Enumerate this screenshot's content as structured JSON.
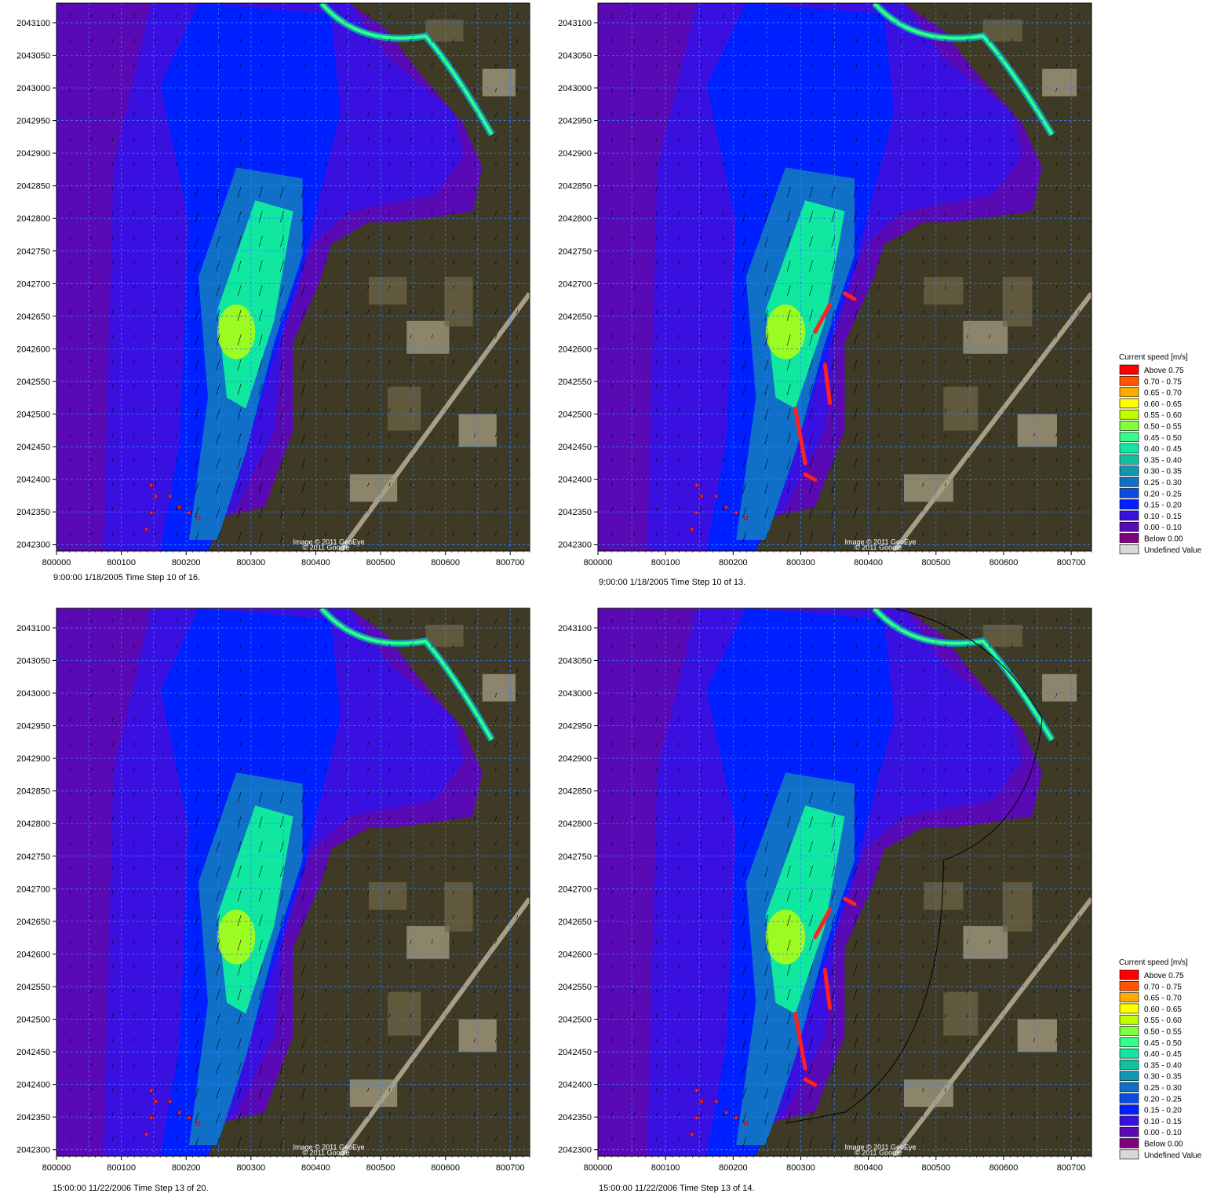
{
  "colors": {
    "above_075": "#ff0000",
    "c070_075": "#ff5500",
    "c065_070": "#ffaa00",
    "c060_065": "#ffff00",
    "c055_060": "#bfff00",
    "c050_055": "#80ff40",
    "c045_050": "#33ff88",
    "c040_045": "#10e8a0",
    "c035_040": "#10c0a0",
    "c030_035": "#1098b0",
    "c025_030": "#1070c8",
    "c020_025": "#0a4ce0",
    "c015_020": "#0020ff",
    "c010_015": "#3a10e0",
    "c000_010": "#5a0ab4",
    "below_000": "#800080",
    "undefined": "#d8d8d8",
    "grid": "#2a7fff",
    "land_dark": "#3f3a25",
    "land_mid": "#6e6446",
    "land_light": "#a89e84",
    "structure": "#ff2020"
  },
  "chart_data": [
    {
      "type": "heatmap",
      "xlim": [
        800000,
        800730
      ],
      "ylim": [
        2042290,
        2043130
      ],
      "x_ticks": [
        "800000",
        "800100",
        "800200",
        "800300",
        "800400",
        "800500",
        "800600",
        "800700"
      ],
      "y_ticks": [
        "2042300",
        "2042350",
        "2042400",
        "2042450",
        "2042500",
        "2042550",
        "2042600",
        "2042650",
        "2042700",
        "2042750",
        "2042800",
        "2042850",
        "2042900",
        "2042950",
        "2043000",
        "2043050",
        "2043100"
      ],
      "caption": "9:00:00 1/18/2005  Time Step 10 of 16.",
      "image_credit_1": "Image © 2011 GeoEye",
      "image_credit_2": "© 2011 Google",
      "structures": false,
      "outline": false
    },
    {
      "type": "heatmap",
      "xlim": [
        800000,
        800730
      ],
      "ylim": [
        2042290,
        2043130
      ],
      "x_ticks": [
        "800000",
        "800100",
        "800200",
        "800300",
        "800400",
        "800500",
        "800600",
        "800700"
      ],
      "y_ticks": [
        "2042300",
        "2042350",
        "2042400",
        "2042450",
        "2042500",
        "2042550",
        "2042600",
        "2042650",
        "2042700",
        "2042750",
        "2042800",
        "2042850",
        "2042900",
        "2042950",
        "2043000",
        "2043050",
        "2043100"
      ],
      "caption": "9:00:00 1/18/2005  Time Step 10 of 13.",
      "image_credit_1": "Image © 2011 GeoEye",
      "image_credit_2": "© 2011 Google",
      "structures": true,
      "outline": false
    },
    {
      "type": "heatmap",
      "xlim": [
        800000,
        800730
      ],
      "ylim": [
        2042290,
        2043130
      ],
      "x_ticks": [
        "800000",
        "800100",
        "800200",
        "800300",
        "800400",
        "800500",
        "800600",
        "800700"
      ],
      "y_ticks": [
        "2042300",
        "2042350",
        "2042400",
        "2042450",
        "2042500",
        "2042550",
        "2042600",
        "2042650",
        "2042700",
        "2042750",
        "2042800",
        "2042850",
        "2042900",
        "2042950",
        "2043000",
        "2043050",
        "2043100"
      ],
      "caption": "15:00:00 11/22/2006  Time Step 13 of 20.",
      "image_credit_1": "Image © 2011 GeoEye",
      "image_credit_2": "© 2011 Google",
      "structures": false,
      "outline": false
    },
    {
      "type": "heatmap",
      "xlim": [
        800000,
        800730
      ],
      "ylim": [
        2042290,
        2043130
      ],
      "x_ticks": [
        "800000",
        "800100",
        "800200",
        "800300",
        "800400",
        "800500",
        "800600",
        "800700"
      ],
      "y_ticks": [
        "2042300",
        "2042350",
        "2042400",
        "2042450",
        "2042500",
        "2042550",
        "2042600",
        "2042650",
        "2042700",
        "2042750",
        "2042800",
        "2042850",
        "2042900",
        "2042950",
        "2043000",
        "2043050",
        "2043100"
      ],
      "caption": "15:00:00 11/22/2006  Time Step 13 of 14.",
      "image_credit_1": "Image © 2011 GeoEye",
      "image_credit_2": "© 2011 Google",
      "structures": true,
      "outline": true
    }
  ],
  "legend": {
    "title": "Current speed [m/s]",
    "entries": [
      {
        "label": "Above 0.75",
        "color": "#ff0000"
      },
      {
        "label": "0.70 - 0.75",
        "color": "#ff5500"
      },
      {
        "label": "0.65 - 0.70",
        "color": "#ffaa00"
      },
      {
        "label": "0.60 - 0.65",
        "color": "#ffff00"
      },
      {
        "label": "0.55 - 0.60",
        "color": "#bfff00"
      },
      {
        "label": "0.50 - 0.55",
        "color": "#80ff40"
      },
      {
        "label": "0.45 - 0.50",
        "color": "#33ff88"
      },
      {
        "label": "0.40 - 0.45",
        "color": "#10e8a0"
      },
      {
        "label": "0.35 - 0.40",
        "color": "#10c0a0"
      },
      {
        "label": "0.30 - 0.35",
        "color": "#1098b0"
      },
      {
        "label": "0.25 - 0.30",
        "color": "#1070c8"
      },
      {
        "label": "0.20 - 0.25",
        "color": "#0a4ce0"
      },
      {
        "label": "0.15 - 0.20",
        "color": "#0020ff"
      },
      {
        "label": "0.10 - 0.15",
        "color": "#3a10e0"
      },
      {
        "label": "0.00 - 0.10",
        "color": "#5a0ab4"
      },
      {
        "label": "Below 0.00",
        "color": "#800080"
      },
      {
        "label": "Undefined Value",
        "color": "#d8d8d8"
      }
    ]
  }
}
